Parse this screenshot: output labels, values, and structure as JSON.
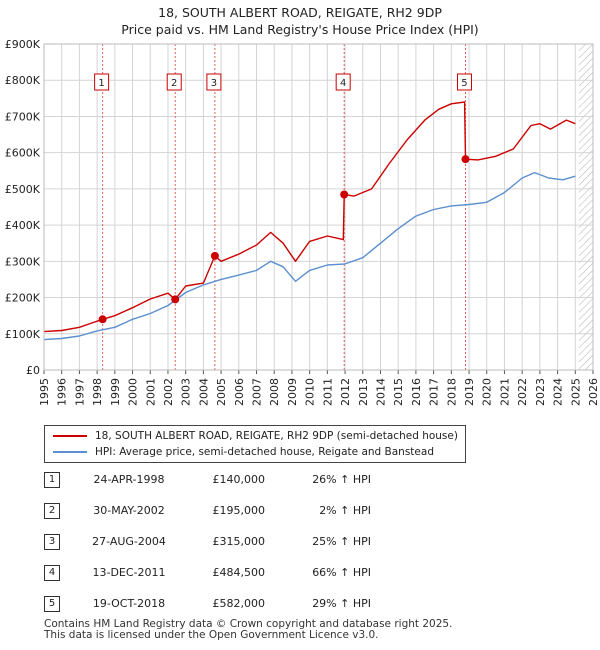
{
  "header": {
    "title": "18, SOUTH ALBERT ROAD, REIGATE, RH2 9DP",
    "subtitle": "Price paid vs. HM Land Registry's House Price Index (HPI)"
  },
  "colors": {
    "property": "#cc0000",
    "hpi": "#5b8fcf",
    "marker": "#cc0000",
    "vline": "#e06060"
  },
  "legend": {
    "property_label": "18, SOUTH ALBERT ROAD, REIGATE, RH2 9DP (semi-detached house)",
    "hpi_label": "HPI: Average price, semi-detached house, Reigate and Banstead"
  },
  "sales": [
    {
      "num": "1",
      "date": "24-APR-1998",
      "price": "£140,000",
      "hpi": "26% ↑ HPI"
    },
    {
      "num": "2",
      "date": "30-MAY-2002",
      "price": "£195,000",
      "hpi": "2% ↑ HPI"
    },
    {
      "num": "3",
      "date": "27-AUG-2004",
      "price": "£315,000",
      "hpi": "25% ↑ HPI"
    },
    {
      "num": "4",
      "date": "13-DEC-2011",
      "price": "£484,500",
      "hpi": "66% ↑ HPI"
    },
    {
      "num": "5",
      "date": "19-OCT-2018",
      "price": "£582,000",
      "hpi": "29% ↑ HPI"
    }
  ],
  "footer": {
    "line1": "Contains HM Land Registry data © Crown copyright and database right 2025.",
    "line2": "This data is licensed under the Open Government Licence v3.0."
  },
  "chart_data": {
    "type": "line",
    "title": "18, SOUTH ALBERT ROAD, REIGATE, RH2 9DP",
    "subtitle": "Price paid vs. HM Land Registry's House Price Index (HPI)",
    "xlim": [
      1995,
      2026
    ],
    "ylim": [
      0,
      900000
    ],
    "x_ticks": [
      "1995",
      "1996",
      "1997",
      "1998",
      "1999",
      "2000",
      "2001",
      "2002",
      "2003",
      "2004",
      "2005",
      "2006",
      "2007",
      "2008",
      "2009",
      "2010",
      "2011",
      "2012",
      "2013",
      "2014",
      "2015",
      "2016",
      "2017",
      "2018",
      "2019",
      "2020",
      "2021",
      "2022",
      "2023",
      "2024",
      "2025",
      "2026"
    ],
    "y_ticks": [
      {
        "value": 0,
        "label": "£0"
      },
      {
        "value": 100000,
        "label": "£100K"
      },
      {
        "value": 200000,
        "label": "£200K"
      },
      {
        "value": 300000,
        "label": "£300K"
      },
      {
        "value": 400000,
        "label": "£400K"
      },
      {
        "value": 500000,
        "label": "£500K"
      },
      {
        "value": 600000,
        "label": "£600K"
      },
      {
        "value": 700000,
        "label": "£700K"
      },
      {
        "value": 800000,
        "label": "£800K"
      },
      {
        "value": 900000,
        "label": "£900K"
      }
    ],
    "grid": true,
    "future_hatch_from": 2025.2,
    "series": [
      {
        "name": "18, SOUTH ALBERT ROAD, REIGATE, RH2 9DP (semi-detached house)",
        "points": [
          [
            1995.0,
            106000
          ],
          [
            1996.0,
            109000
          ],
          [
            1997.0,
            118000
          ],
          [
            1997.6,
            128000
          ],
          [
            1998.31,
            140000
          ],
          [
            1999.0,
            150000
          ],
          [
            2000.0,
            172000
          ],
          [
            2001.0,
            196000
          ],
          [
            2002.0,
            212000
          ],
          [
            2002.41,
            195000
          ],
          [
            2003.0,
            232000
          ],
          [
            2004.0,
            240000
          ],
          [
            2004.65,
            315000
          ],
          [
            2005.0,
            300000
          ],
          [
            2006.0,
            320000
          ],
          [
            2007.0,
            345000
          ],
          [
            2007.8,
            380000
          ],
          [
            2008.5,
            350000
          ],
          [
            2009.2,
            300000
          ],
          [
            2010.0,
            355000
          ],
          [
            2011.0,
            370000
          ],
          [
            2011.9,
            360000
          ],
          [
            2011.95,
            484500
          ],
          [
            2012.5,
            480000
          ],
          [
            2013.5,
            500000
          ],
          [
            2014.5,
            570000
          ],
          [
            2015.5,
            635000
          ],
          [
            2016.5,
            690000
          ],
          [
            2017.3,
            720000
          ],
          [
            2018.0,
            735000
          ],
          [
            2018.75,
            740000
          ],
          [
            2018.8,
            582000
          ],
          [
            2019.5,
            580000
          ],
          [
            2020.5,
            590000
          ],
          [
            2021.5,
            610000
          ],
          [
            2022.5,
            675000
          ],
          [
            2023.0,
            680000
          ],
          [
            2023.6,
            665000
          ],
          [
            2024.5,
            690000
          ],
          [
            2025.0,
            680000
          ]
        ]
      },
      {
        "name": "HPI: Average price, semi-detached house, Reigate and Banstead",
        "points": [
          [
            1995.0,
            84000
          ],
          [
            1996.0,
            87000
          ],
          [
            1997.0,
            94000
          ],
          [
            1998.0,
            108000
          ],
          [
            1999.0,
            118000
          ],
          [
            2000.0,
            140000
          ],
          [
            2001.0,
            156000
          ],
          [
            2002.0,
            178000
          ],
          [
            2003.0,
            214000
          ],
          [
            2004.0,
            235000
          ],
          [
            2005.0,
            250000
          ],
          [
            2006.0,
            262000
          ],
          [
            2007.0,
            275000
          ],
          [
            2007.8,
            300000
          ],
          [
            2008.5,
            285000
          ],
          [
            2009.2,
            245000
          ],
          [
            2010.0,
            275000
          ],
          [
            2011.0,
            290000
          ],
          [
            2012.0,
            293000
          ],
          [
            2013.0,
            310000
          ],
          [
            2014.0,
            350000
          ],
          [
            2015.0,
            390000
          ],
          [
            2016.0,
            425000
          ],
          [
            2017.0,
            443000
          ],
          [
            2018.0,
            453000
          ],
          [
            2019.0,
            457000
          ],
          [
            2020.0,
            463000
          ],
          [
            2021.0,
            490000
          ],
          [
            2022.0,
            530000
          ],
          [
            2022.7,
            545000
          ],
          [
            2023.5,
            530000
          ],
          [
            2024.3,
            525000
          ],
          [
            2025.0,
            535000
          ]
        ]
      }
    ],
    "markers": [
      {
        "label": "1",
        "x": 1998.31,
        "y": 140000
      },
      {
        "label": "2",
        "x": 2002.41,
        "y": 195000
      },
      {
        "label": "3",
        "x": 2004.65,
        "y": 315000
      },
      {
        "label": "4",
        "x": 2011.95,
        "y": 484500
      },
      {
        "label": "5",
        "x": 2018.8,
        "y": 582000
      }
    ]
  }
}
